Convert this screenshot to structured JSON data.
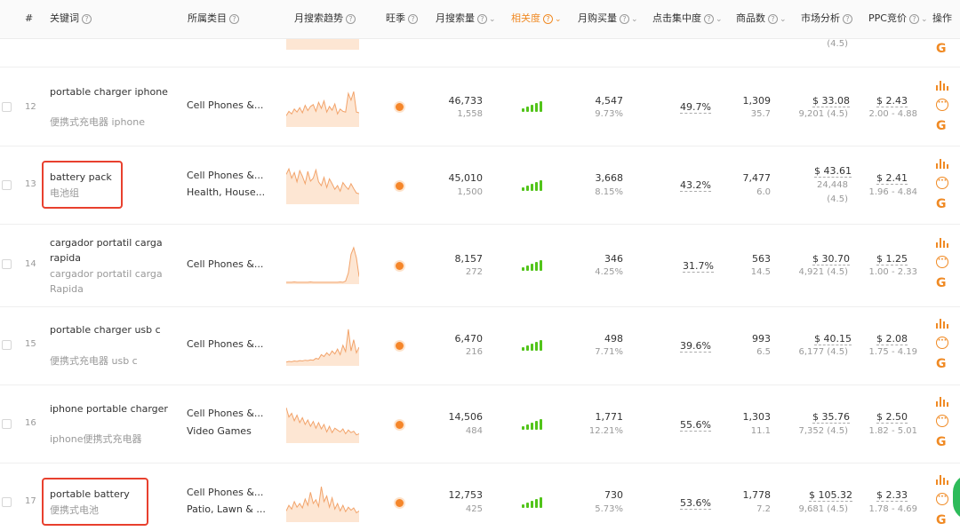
{
  "header": {
    "index": "#",
    "keyword": "关键词",
    "category": "所属类目",
    "trend": "月搜索趋势",
    "season": "旺季",
    "search_volume": "月搜索量",
    "relevance": "相关度",
    "monthly_purchase": "月购买量",
    "click_concentration": "点击集中度",
    "product_count": "商品数",
    "market_analysis": "市场分析",
    "ppc_bid": "PPC竞价",
    "actions": "操作"
  },
  "partial_row": {
    "market_count": "(4.5)"
  },
  "rows": [
    {
      "index": "12",
      "keyword": "portable charger iphone",
      "translation": "便携式充电器 iphone",
      "category_1": "Cell Phones &...",
      "category_2": "",
      "search_volume": "46,733",
      "search_volume_daily": "1,558",
      "purchases": "4,547",
      "purchase_rate": "9.73%",
      "click_concentration": "49.7%",
      "products": "1,309",
      "products_ratio": "35.7",
      "price": "$ 33.08",
      "reviews": "9,201 (4.5)",
      "reviews_2": "",
      "ppc": "$ 2.43",
      "ppc_range": "2.00 - 4.88",
      "trend": [
        30,
        42,
        35,
        48,
        40,
        52,
        38,
        58,
        44,
        55,
        60,
        42,
        66,
        50,
        70,
        40,
        55,
        45,
        62,
        35,
        48,
        42,
        40,
        90,
        72,
        95,
        40,
        38
      ]
    },
    {
      "index": "13",
      "keyword": "battery pack",
      "translation": "电池组",
      "category_1": "Cell Phones &...",
      "category_2": "Health, House...",
      "search_volume": "45,010",
      "search_volume_daily": "1,500",
      "purchases": "3,668",
      "purchase_rate": "8.15%",
      "click_concentration": "43.2%",
      "products": "7,477",
      "products_ratio": "6.0",
      "price": "$ 43.61",
      "reviews": "24,448",
      "reviews_2": "(4.5)",
      "ppc": "$ 2.41",
      "ppc_range": "1.96 - 4.84",
      "trend": [
        80,
        95,
        70,
        85,
        60,
        90,
        75,
        55,
        88,
        62,
        70,
        92,
        60,
        50,
        72,
        45,
        68,
        55,
        40,
        50,
        35,
        58,
        48,
        40,
        55,
        42,
        30,
        28
      ]
    },
    {
      "index": "14",
      "keyword": "cargador portatil carga rapida",
      "translation": "cargador portatil carga Rapida",
      "category_1": "Cell Phones &...",
      "category_2": "",
      "search_volume": "8,157",
      "search_volume_daily": "272",
      "purchases": "346",
      "purchase_rate": "4.25%",
      "click_concentration": "31.7%",
      "products": "563",
      "products_ratio": "14.5",
      "price": "$ 30.70",
      "reviews": "4,921 (4.5)",
      "reviews_2": "",
      "ppc": "$ 1.25",
      "ppc_range": "1.00 - 2.33",
      "trend": [
        5,
        5,
        5,
        6,
        5,
        5,
        5,
        5,
        5,
        6,
        5,
        5,
        5,
        5,
        5,
        5,
        5,
        5,
        5,
        5,
        6,
        5,
        8,
        30,
        80,
        98,
        70,
        20
      ]
    },
    {
      "index": "15",
      "keyword": "portable charger usb c",
      "translation": "便携式充电器 usb c",
      "category_1": "Cell Phones &...",
      "category_2": "",
      "search_volume": "6,470",
      "search_volume_daily": "216",
      "purchases": "498",
      "purchase_rate": "7.71%",
      "click_concentration": "39.6%",
      "products": "993",
      "products_ratio": "6.5",
      "price": "$ 40.15",
      "reviews": "6,177 (4.5)",
      "reviews_2": "",
      "ppc": "$ 2.08",
      "ppc_range": "1.75 - 4.19",
      "trend": [
        10,
        12,
        11,
        13,
        12,
        14,
        13,
        15,
        14,
        16,
        15,
        20,
        18,
        30,
        25,
        35,
        28,
        40,
        32,
        45,
        30,
        55,
        38,
        98,
        40,
        70,
        35,
        50
      ]
    },
    {
      "index": "16",
      "keyword": "iphone portable charger",
      "translation": "iphone便携式充电器",
      "category_1": "Cell Phones &...",
      "category_2": "Video Games",
      "search_volume": "14,506",
      "search_volume_daily": "484",
      "purchases": "1,771",
      "purchase_rate": "12.21%",
      "click_concentration": "55.6%",
      "products": "1,303",
      "products_ratio": "11.1",
      "price": "$ 35.76",
      "reviews": "7,352 (4.5)",
      "reviews_2": "",
      "ppc": "$ 2.50",
      "ppc_range": "1.82 - 5.01",
      "trend": [
        95,
        70,
        80,
        60,
        75,
        55,
        68,
        50,
        62,
        45,
        58,
        40,
        55,
        38,
        50,
        30,
        45,
        28,
        40,
        35,
        30,
        38,
        25,
        35,
        28,
        32,
        22,
        25
      ]
    },
    {
      "index": "17",
      "keyword": "portable battery",
      "translation": "便携式电池",
      "category_1": "Cell Phones &...",
      "category_2": "Patio, Lawn & ...",
      "search_volume": "12,753",
      "search_volume_daily": "425",
      "purchases": "730",
      "purchase_rate": "5.73%",
      "click_concentration": "53.6%",
      "products": "1,778",
      "products_ratio": "7.2",
      "price": "$ 105.32",
      "reviews": "9,681 (4.5)",
      "reviews_2": "",
      "ppc": "$ 2.33",
      "ppc_range": "1.78 - 4.69",
      "trend": [
        30,
        45,
        35,
        55,
        40,
        50,
        38,
        62,
        45,
        80,
        50,
        60,
        42,
        95,
        55,
        70,
        40,
        65,
        35,
        50,
        30,
        45,
        28,
        40,
        32,
        38,
        25,
        30
      ]
    }
  ],
  "colors": {
    "accent": "#f08a24",
    "relevance_bars": "#52c41a",
    "highlight_box": "#e8402e",
    "trend_fill": "#fde6d3",
    "trend_line": "#f2a36a"
  }
}
